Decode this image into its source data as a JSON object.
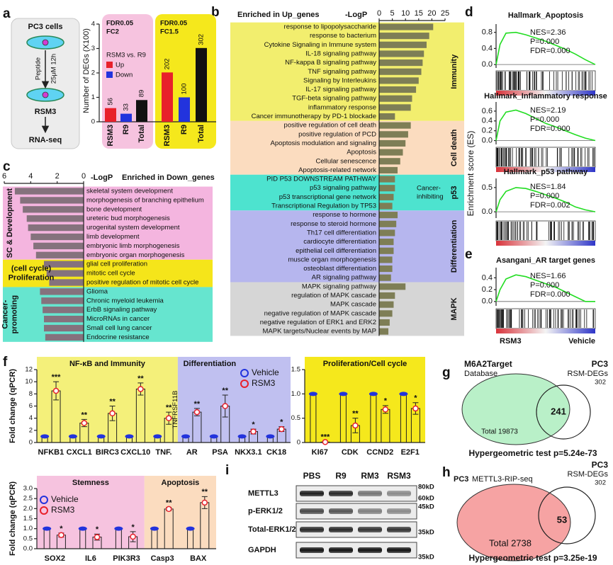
{
  "panel_labels": [
    "a",
    "b",
    "c",
    "d",
    "e",
    "f",
    "g",
    "h",
    "i"
  ],
  "workflow": {
    "cells": "PC3 cells",
    "treatment": "Peptide",
    "dose": "25μM 12h",
    "product": "RSM3",
    "assay": "RNA-seq"
  },
  "chart_data": [
    {
      "type": "bar",
      "ylabel": "Number of DEGs (X100)",
      "categories": [
        "RSM3",
        "R9",
        "Total",
        "RSM3",
        "R9",
        "Total"
      ],
      "values": [
        0.56,
        0.33,
        0.89,
        2.02,
        1.0,
        3.02
      ],
      "value_labels": [
        "56",
        "33",
        "89",
        "202",
        "100",
        "302"
      ],
      "colors": [
        "#e8202a",
        "#2233dd",
        "#111111",
        "#e8202a",
        "#2233dd",
        "#111111"
      ],
      "ylim": [
        0,
        4
      ],
      "yticks": [
        0,
        1,
        2,
        3,
        4
      ],
      "group_labels": [
        [
          "FDR0.05",
          "FC2"
        ],
        [
          "FDR0.05",
          "FC1.5"
        ]
      ],
      "group_colors": [
        "#f6c3df",
        "#f5e81c"
      ],
      "legend_title": "RSM3 vs. R9",
      "legend": [
        {
          "name": "Up",
          "color": "#e8202a"
        },
        {
          "name": "Down",
          "color": "#2233dd"
        }
      ]
    },
    {
      "type": "barh",
      "title": "Enriched in Up_genes",
      "xlabel": "-LogP",
      "xlim": [
        0,
        25
      ],
      "xticks": [
        0,
        5,
        10,
        15,
        20,
        25
      ],
      "color": "#7e7e56",
      "groups": [
        {
          "name": [
            "Immunity"
          ],
          "color": "#f2ee6e",
          "categories": [
            "response to lipopolysaccharide",
            "response to bacterium",
            "Cytokine Signaling in Immune system",
            "IL-18 signaling pathway",
            "NF-kappa B signaling pathway",
            "TNF signaling pathway",
            "Signaling by Interleukins",
            "IL-17 signaling pathway",
            "TGF-beta signaling pathway",
            "inflammatory response",
            "Cancer immunotherapy by PD-1 blockade"
          ],
          "values": [
            20.5,
            19,
            18,
            17,
            16.5,
            16,
            15,
            14,
            12.5,
            12,
            6
          ]
        },
        {
          "name": [
            "Cell death"
          ],
          "color": "#fbdcbf",
          "categories": [
            "positive regulation of cell death",
            "positive regulation of PCD",
            "Apoptosis modulation and signaling",
            "Apoptosis",
            "Cellular senescence",
            "Apoptosis-related network"
          ],
          "values": [
            12,
            11,
            10,
            9,
            8,
            7
          ]
        },
        {
          "name": [
            "p53"
          ],
          "color": "#4de3cf",
          "note": [
            "Cancer-",
            "inhibiting"
          ],
          "categories": [
            "PID P53 DOWNSTREAM PATHWAY",
            "p53 signaling pathway",
            "p53 transcriptional gene network",
            "Transcriptional Regulation by TP53"
          ],
          "values": [
            6,
            6,
            5.5,
            5
          ]
        },
        {
          "name": [
            "Differentiation"
          ],
          "color": "#b6b6ee",
          "categories": [
            "response to hormone",
            "response to steroid hormone",
            "Th17 cell differentiation",
            "cardiocyte differentiation",
            "epithelial cell differentiation",
            "muscle organ morphogenesis",
            "osteoblast differentiation",
            "AR signaling pathway"
          ],
          "values": [
            7,
            6.5,
            6,
            5.5,
            5.5,
            5,
            5,
            4.5
          ]
        },
        {
          "name": [
            "MAPK"
          ],
          "color": "#d6d6d6",
          "categories": [
            "MAPK signaling pathway",
            "regulation of MAPK cascade",
            "MAPK cascade",
            "negative regulation of MAPK cascade",
            "negative regulation of ERK1 and ERK2",
            "MAPK targets/Nuclear events by MAP"
          ],
          "values": [
            10,
            6,
            5.5,
            5,
            4,
            3.5
          ]
        }
      ]
    },
    {
      "type": "barh",
      "title": "Enriched in Down_genes",
      "xlabel": "-LogP",
      "xlim": [
        6,
        0
      ],
      "xticks": [
        6,
        4,
        2,
        0
      ],
      "color": "#85727d",
      "groups": [
        {
          "name": [
            "SC & Development"
          ],
          "color": "#f4b5df",
          "categories": [
            "skeletal system development",
            "morphogenesis of branching epithelium",
            "bone development",
            "ureteric bud morphogenesis",
            "urogenital system development",
            "limb development",
            "embryonic limb morphogenesis",
            "embryonic organ morphogenesis"
          ],
          "values": [
            5.2,
            4.8,
            4.6,
            4.3,
            4.2,
            4.0,
            3.8,
            3.6
          ]
        },
        {
          "name": [
            "(cell cycle)",
            "Proliferation"
          ],
          "color": "#f5e51a",
          "categories": [
            "glial cell proliferation",
            "mitotic cell cycle",
            "positive regulation of mitotic cell cycle"
          ],
          "values": [
            3.0,
            2.8,
            2.6
          ]
        },
        {
          "name": [
            "Cancer-",
            "promoting"
          ],
          "color": "#66e5cf",
          "categories": [
            "Glioma",
            "Chronic myeloid leukemia",
            "ErbB signaling pathway",
            "MicroRNAs in cancer",
            "Small cell lung cancer",
            "Endocrine resistance"
          ],
          "values": [
            3.3,
            3.2,
            3.1,
            3.0,
            3.0,
            2.9
          ]
        }
      ]
    },
    {
      "type": "line",
      "title": "Hallmark_Apoptosis",
      "ylabel": "Enrichment score (ES)",
      "stats": [
        "NES=2.36",
        "P=0.000",
        "FDR=0.000"
      ],
      "color": "#22dd22",
      "x": [
        0,
        4,
        10,
        20,
        30,
        40,
        50,
        60,
        70,
        80,
        90,
        100
      ],
      "values": [
        0,
        0.5,
        0.78,
        0.8,
        0.74,
        0.66,
        0.58,
        0.48,
        0.38,
        0.26,
        0.12,
        0
      ],
      "xlim": [
        0,
        100
      ],
      "ylim": [
        -0.05,
        0.9
      ],
      "yticks": [
        {
          "value": 0,
          "label": "0.0"
        },
        0.4,
        0.8
      ]
    },
    {
      "type": "line",
      "title": "Hallmark_Inflammatory response",
      "stats": [
        "NES=2.19",
        "P=0.000",
        "FDR=0.000"
      ],
      "color": "#22dd22",
      "x": [
        0,
        4,
        10,
        20,
        30,
        40,
        50,
        60,
        70,
        80,
        90,
        100
      ],
      "values": [
        0,
        0.4,
        0.58,
        0.62,
        0.55,
        0.45,
        0.35,
        0.28,
        0.2,
        0.12,
        0.05,
        0
      ],
      "xlim": [
        0,
        100
      ],
      "ylim": [
        -0.05,
        0.7
      ],
      "yticks": [
        {
          "value": 0,
          "label": "0.0"
        },
        0.2,
        0.4,
        0.6
      ]
    },
    {
      "type": "line",
      "title": "Hallmark_p53 pathway",
      "stats": [
        "NES=1.84",
        "P=0.000",
        "FDR=0.002"
      ],
      "color": "#22dd22",
      "x": [
        0,
        4,
        10,
        20,
        30,
        40,
        50,
        60,
        70,
        80,
        90,
        100
      ],
      "values": [
        0,
        0.25,
        0.42,
        0.5,
        0.48,
        0.42,
        0.35,
        0.28,
        0.2,
        0.1,
        0.04,
        0
      ],
      "xlim": [
        0,
        100
      ],
      "ylim": [
        -0.1,
        0.6
      ],
      "yticks": [
        {
          "value": 0,
          "label": "0.0"
        },
        0.5
      ]
    },
    {
      "type": "line",
      "title": "Asangani_AR target genes",
      "stats": [
        "NES=1.66",
        "P=0.000",
        "FDR=0.000"
      ],
      "rank_labels": [
        "RSM3",
        "Vehicle"
      ],
      "color": "#22dd22",
      "x": [
        0,
        4,
        10,
        20,
        30,
        40,
        50,
        60,
        70,
        80,
        90,
        100
      ],
      "values": [
        0,
        0.2,
        0.38,
        0.45,
        0.42,
        0.36,
        0.3,
        0.24,
        0.16,
        0.08,
        0.0,
        0
      ],
      "xlim": [
        0,
        100
      ],
      "ylim": [
        -0.05,
        0.5
      ],
      "yticks": [
        {
          "value": 0,
          "label": "0.0"
        },
        0.2,
        0.4
      ]
    },
    {
      "type": "bar_dot",
      "ylabel": "Fold change (qPCR)",
      "note": "TNFRSF11B",
      "ylim": [
        0,
        12
      ],
      "yticks": [
        0,
        2,
        4,
        6,
        8,
        10,
        12
      ],
      "groups": [
        {
          "name": "NF-κB and Immunity",
          "color": "#f4f07a",
          "categories": [
            "NFKB1",
            "CXCL1",
            "BIRC3",
            "CXCL10",
            "TNF."
          ]
        },
        {
          "name": "Differentiation",
          "color": "#c0c0f0",
          "categories": [
            "AR",
            "PSA",
            "NKX3.1",
            "CK18"
          ]
        }
      ],
      "series": [
        {
          "name": "Vehicle",
          "color": "#2233dd",
          "values": [
            1,
            1,
            1,
            1,
            1,
            1,
            1,
            1,
            1
          ]
        },
        {
          "name": "RSM3",
          "color": "#e8202a",
          "values": [
            8.5,
            3.2,
            4.8,
            8.8,
            4.0,
            5.0,
            6.0,
            1.8,
            2.2
          ],
          "errors": [
            1.5,
            0.6,
            1.2,
            1.0,
            1.0,
            0.6,
            1.8,
            0.4,
            0.4
          ]
        }
      ],
      "stars": [
        "***",
        "**",
        "**",
        "**",
        "**",
        "**",
        "**",
        "*",
        "*"
      ]
    },
    {
      "type": "bar_dot",
      "ylim": [
        0,
        1.5
      ],
      "yticks": [
        0,
        0.5,
        {
          "value": 1,
          "label": "1.0"
        },
        1.5
      ],
      "groups": [
        {
          "name": "Proliferation/Cell cycle",
          "color": "#f5e81c",
          "categories": [
            "KI67",
            "CDK",
            "CCND2",
            "E2F1"
          ]
        }
      ],
      "series": [
        {
          "color": "#2233dd",
          "values": [
            1,
            1,
            1,
            1
          ]
        },
        {
          "color": "#e8202a",
          "values": [
            0.01,
            0.35,
            0.68,
            0.7
          ],
          "errors": [
            0.01,
            0.15,
            0.08,
            0.12
          ]
        }
      ],
      "stars": [
        "***",
        "**",
        "*",
        "*"
      ]
    },
    {
      "type": "bar_dot",
      "ylabel": "Fold change (qPCR)",
      "ylim": [
        0,
        3
      ],
      "yticks": [
        {
          "value": 0,
          "label": "0.0"
        },
        0.5,
        {
          "value": 1,
          "label": "1.0"
        },
        1.5,
        {
          "value": 2,
          "label": "2.0"
        },
        2.5,
        {
          "value": 3,
          "label": "3.0"
        }
      ],
      "groups": [
        {
          "name": "Stemness",
          "color": "#f6c3df",
          "categories": [
            "SOX2",
            "IL6",
            "PIK3R3"
          ]
        },
        {
          "name": "Apoptosis",
          "color": "#fbdcbf",
          "categories": [
            "Casp3",
            "BAX"
          ]
        }
      ],
      "series": [
        {
          "name": "Vehicle",
          "color": "#2233dd",
          "values": [
            1,
            1,
            1,
            1,
            1
          ]
        },
        {
          "name": "RSM3",
          "color": "#e8202a",
          "values": [
            0.68,
            0.58,
            0.6,
            1.98,
            2.3
          ],
          "errors": [
            0.1,
            0.15,
            0.25,
            0.08,
            0.3
          ]
        }
      ],
      "stars": [
        "*",
        "*",
        "*",
        "**",
        "**"
      ]
    }
  ],
  "venn": [
    {
      "left_title": "M6A2Target",
      "left_subtitle": "Database",
      "right_title": "PC3",
      "right_subtitle": "RSM-DEGs",
      "right_count": "302",
      "overlap": "241",
      "left_total": "Total 19873",
      "test": "Hypergeometric test p=5.24e-73"
    },
    {
      "left_title": "PC3",
      "left_subtitle": "METTL3-RIP-seq",
      "right_title": "PC3",
      "right_subtitle": "RSM-DEGs",
      "right_count": "302",
      "overlap": "53",
      "left_total": "Total 2738",
      "test": "Hypergeometric test p=3.25e-19"
    }
  ],
  "western_blot": {
    "lanes": [
      "PBS",
      "R9",
      "RM3",
      "RSM3"
    ],
    "rows": [
      "METTL3",
      "p-ERK1/2",
      "Total-ERK1/2",
      "GAPDH"
    ],
    "markers": [
      "80kD",
      "60kD",
      "45kD",
      "35kD",
      "35kD"
    ]
  }
}
